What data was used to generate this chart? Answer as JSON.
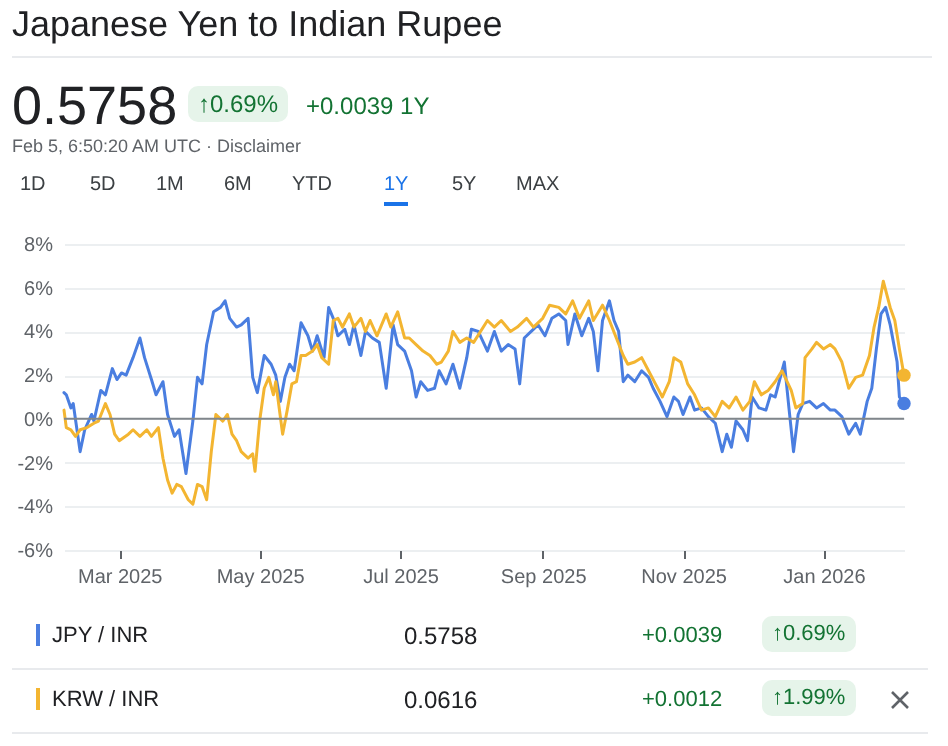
{
  "chart_data": {
    "type": "line",
    "title": "Japanese Yen to Indian Rupee",
    "annotations": [
      "0.5758",
      "↑0.69%",
      "+0.0039 1Y",
      "Feb 5, 6:50:20 AM UTC · Disclaimer",
      "1D",
      "5D",
      "1M",
      "6M",
      "YTD",
      "1Y",
      "5Y",
      "MAX",
      "0.5758",
      "+0.0039",
      "↑0.69%",
      "0.0616",
      "+0.0012",
      "↑1.99%"
    ],
    "xlim": [
      "2025-02-05",
      "2026-02-05"
    ],
    "xticks": [
      {
        "value": "2025-03-01",
        "label": "Mar 2025"
      },
      {
        "value": "2025-05-01",
        "label": "May 2025"
      },
      {
        "value": "2025-07-01",
        "label": "Jul 2025"
      },
      {
        "value": "2025-09-01",
        "label": "Sep 2025"
      },
      {
        "value": "2025-11-01",
        "label": "Nov 2025"
      },
      {
        "value": "2026-01-01",
        "label": "Jan 2026"
      }
    ],
    "ylim": [
      -6,
      8
    ],
    "yticks": [
      {
        "value": -6,
        "label": "-6%"
      },
      {
        "value": -4,
        "label": "-4%"
      },
      {
        "value": -2,
        "label": "-2%"
      },
      {
        "value": 0,
        "label": "0%"
      },
      {
        "value": 2,
        "label": "2%"
      },
      {
        "value": 4,
        "label": "4%"
      },
      {
        "value": 6,
        "label": "6%"
      },
      {
        "value": 8,
        "label": "8%"
      }
    ],
    "grid": "y",
    "legend": "bottom",
    "marker": "none",
    "line_style": "solid",
    "ref_lines": [
      {
        "axis": "y",
        "value": 0,
        "color": "#80868b"
      }
    ],
    "series": [
      {
        "name": "JPY / INR",
        "color": "#4a7ee0",
        "x": [
          "2025-02-05",
          "2025-02-06",
          "2025-02-08",
          "2025-02-09",
          "2025-02-12",
          "2025-02-14",
          "2025-02-17",
          "2025-02-18",
          "2025-02-21",
          "2025-02-23",
          "2025-02-26",
          "2025-02-28",
          "2025-03-02",
          "2025-03-04",
          "2025-03-07",
          "2025-03-10",
          "2025-03-12",
          "2025-03-15",
          "2025-03-17",
          "2025-03-20",
          "2025-03-22",
          "2025-03-25",
          "2025-03-27",
          "2025-03-30",
          "2025-04-02",
          "2025-04-04",
          "2025-04-06",
          "2025-04-08",
          "2025-04-11",
          "2025-04-14",
          "2025-04-16",
          "2025-04-18",
          "2025-04-21",
          "2025-04-23",
          "2025-04-26",
          "2025-04-28",
          "2025-04-30",
          "2025-05-03",
          "2025-05-06",
          "2025-05-08",
          "2025-05-10",
          "2025-05-12",
          "2025-05-14",
          "2025-05-16",
          "2025-05-19",
          "2025-05-22",
          "2025-05-24",
          "2025-05-26",
          "2025-05-29",
          "2025-05-31",
          "2025-06-02",
          "2025-06-04",
          "2025-06-07",
          "2025-06-09",
          "2025-06-11",
          "2025-06-14",
          "2025-06-16",
          "2025-06-19",
          "2025-06-22",
          "2025-06-25",
          "2025-06-28",
          "2025-06-30",
          "2025-07-03",
          "2025-07-06",
          "2025-07-08",
          "2025-07-10",
          "2025-07-13",
          "2025-07-16",
          "2025-07-18",
          "2025-07-21",
          "2025-07-24",
          "2025-07-27",
          "2025-07-30",
          "2025-08-01",
          "2025-08-04",
          "2025-08-08",
          "2025-08-11",
          "2025-08-14",
          "2025-08-17",
          "2025-08-20",
          "2025-08-22",
          "2025-08-24",
          "2025-08-27",
          "2025-08-30",
          "2025-09-02",
          "2025-09-05",
          "2025-09-08",
          "2025-09-11",
          "2025-09-12",
          "2025-09-15",
          "2025-09-18",
          "2025-09-21",
          "2025-09-23",
          "2025-09-25",
          "2025-09-27",
          "2025-09-30",
          "2025-10-02",
          "2025-10-04",
          "2025-10-06",
          "2025-10-08",
          "2025-10-11",
          "2025-10-14",
          "2025-10-17",
          "2025-10-19",
          "2025-10-22",
          "2025-10-25",
          "2025-10-28",
          "2025-10-30",
          "2025-11-01",
          "2025-11-04",
          "2025-11-06",
          "2025-11-09",
          "2025-11-12",
          "2025-11-15",
          "2025-11-18",
          "2025-11-20",
          "2025-11-22",
          "2025-11-24",
          "2025-11-27",
          "2025-11-29",
          "2025-12-01",
          "2025-12-04",
          "2025-12-07",
          "2025-12-09",
          "2025-12-11",
          "2025-12-15",
          "2025-12-17",
          "2025-12-19",
          "2025-12-21",
          "2025-12-23",
          "2025-12-26",
          "2025-12-29",
          "2026-01-01",
          "2026-01-04",
          "2026-01-06",
          "2026-01-09",
          "2026-01-12",
          "2026-01-15",
          "2026-01-17",
          "2026-01-20",
          "2026-01-22",
          "2026-01-24",
          "2026-01-26",
          "2026-01-28",
          "2026-01-30",
          "2026-02-02",
          "2026-02-03",
          "2026-02-05"
        ],
        "values": [
          1.2,
          1.1,
          0.5,
          0.7,
          -1.5,
          -0.5,
          0.2,
          -0.1,
          1.3,
          1.1,
          2.3,
          1.8,
          2.1,
          2.0,
          2.8,
          3.7,
          2.8,
          1.8,
          1.1,
          1.7,
          0.2,
          -0.8,
          -0.5,
          -2.5,
          -0.1,
          1.9,
          1.6,
          3.4,
          4.9,
          5.1,
          5.4,
          4.6,
          4.2,
          4.3,
          4.6,
          1.9,
          1.2,
          2.9,
          2.5,
          2.0,
          0.8,
          1.9,
          2.5,
          2.2,
          4.4,
          3.8,
          3.1,
          3.8,
          2.8,
          5.1,
          4.6,
          3.8,
          4.1,
          3.4,
          4.3,
          2.9,
          4.0,
          3.7,
          3.5,
          1.4,
          4.3,
          3.4,
          3.1,
          2.2,
          1.0,
          1.7,
          1.3,
          1.4,
          2.2,
          1.6,
          2.5,
          1.4,
          2.8,
          4.1,
          4.0,
          3.1,
          4.0,
          3.1,
          3.4,
          3.2,
          1.6,
          3.7,
          4.0,
          4.3,
          3.8,
          4.6,
          4.8,
          4.5,
          3.4,
          4.8,
          3.8,
          4.6,
          4.0,
          2.2,
          4.5,
          5.4,
          4.5,
          4.0,
          1.7,
          2.0,
          1.7,
          2.2,
          1.9,
          1.4,
          0.8,
          0.1,
          1.0,
          0.8,
          0.2,
          1.0,
          0.4,
          0.5,
          0.1,
          -0.2,
          -1.5,
          -0.7,
          -1.3,
          -0.1,
          -0.5,
          -1.0,
          1.0,
          0.5,
          0.4,
          1.1,
          1.0,
          2.6,
          0.5,
          -1.5,
          0.2,
          0.7,
          0.8,
          0.5,
          0.7,
          0.4,
          0.4,
          0.1,
          -0.7,
          -0.2,
          -0.7,
          0.8,
          1.4,
          3.2,
          4.8,
          5.1,
          4.3,
          2.6,
          1.0,
          0.7
        ]
      },
      {
        "name": "KRW / INR",
        "color": "#f3b531",
        "x": [
          "2025-02-05",
          "2025-02-06",
          "2025-02-08",
          "2025-02-10",
          "2025-02-12",
          "2025-02-15",
          "2025-02-18",
          "2025-02-20",
          "2025-02-23",
          "2025-02-25",
          "2025-02-27",
          "2025-03-01",
          "2025-03-05",
          "2025-03-07",
          "2025-03-10",
          "2025-03-13",
          "2025-03-15",
          "2025-03-18",
          "2025-03-20",
          "2025-03-22",
          "2025-03-24",
          "2025-03-26",
          "2025-03-28",
          "2025-03-31",
          "2025-04-02",
          "2025-04-04",
          "2025-04-06",
          "2025-04-08",
          "2025-04-10",
          "2025-04-12",
          "2025-04-15",
          "2025-04-17",
          "2025-04-19",
          "2025-04-21",
          "2025-04-23",
          "2025-04-26",
          "2025-04-28",
          "2025-04-29",
          "2025-05-01",
          "2025-05-03",
          "2025-05-05",
          "2025-05-07",
          "2025-05-08",
          "2025-05-11",
          "2025-05-13",
          "2025-05-15",
          "2025-05-17",
          "2025-05-19",
          "2025-05-21",
          "2025-05-24",
          "2025-05-26",
          "2025-05-28",
          "2025-05-31",
          "2025-06-02",
          "2025-06-04",
          "2025-06-06",
          "2025-06-09",
          "2025-06-11",
          "2025-06-14",
          "2025-06-16",
          "2025-06-18",
          "2025-06-21",
          "2025-06-23",
          "2025-06-25",
          "2025-06-27",
          "2025-06-30",
          "2025-07-03",
          "2025-07-05",
          "2025-07-08",
          "2025-07-11",
          "2025-07-14",
          "2025-07-17",
          "2025-07-19",
          "2025-07-22",
          "2025-07-24",
          "2025-07-27",
          "2025-07-30",
          "2025-08-02",
          "2025-08-08",
          "2025-08-11",
          "2025-08-14",
          "2025-08-18",
          "2025-08-21",
          "2025-08-25",
          "2025-08-28",
          "2025-09-01",
          "2025-09-04",
          "2025-09-08",
          "2025-09-11",
          "2025-09-14",
          "2025-09-17",
          "2025-09-21",
          "2025-09-23",
          "2025-09-27",
          "2025-09-30",
          "2025-10-03",
          "2025-10-06",
          "2025-10-08",
          "2025-10-11",
          "2025-10-14",
          "2025-10-17",
          "2025-10-20",
          "2025-10-23",
          "2025-10-26",
          "2025-10-28",
          "2025-10-31",
          "2025-11-03",
          "2025-11-06",
          "2025-11-09",
          "2025-11-12",
          "2025-11-15",
          "2025-11-18",
          "2025-11-21",
          "2025-11-24",
          "2025-11-27",
          "2025-11-30",
          "2025-12-02",
          "2025-12-05",
          "2025-12-08",
          "2025-12-11",
          "2025-12-14",
          "2025-12-18",
          "2025-12-20",
          "2025-12-23",
          "2025-12-24",
          "2025-12-27",
          "2025-12-29",
          "2026-01-01",
          "2026-01-04",
          "2026-01-06",
          "2026-01-09",
          "2026-01-12",
          "2026-01-15",
          "2026-01-18",
          "2026-01-21",
          "2026-01-23",
          "2026-01-25",
          "2026-01-27",
          "2026-01-30",
          "2026-02-01",
          "2026-02-03",
          "2026-02-05"
        ],
        "values": [
          0.4,
          -0.4,
          -0.5,
          -0.8,
          -0.5,
          -0.4,
          -0.2,
          -0.1,
          0.7,
          0.2,
          -0.7,
          -1.0,
          -0.7,
          -0.5,
          -0.8,
          -0.5,
          -0.8,
          -0.4,
          -1.8,
          -2.8,
          -3.4,
          -3.0,
          -3.1,
          -3.7,
          -3.9,
          -3.0,
          -3.1,
          -3.7,
          -1.5,
          0.2,
          -0.1,
          0.2,
          -0.7,
          -1.0,
          -1.5,
          -1.8,
          -1.6,
          -2.4,
          -0.1,
          1.4,
          1.9,
          1.1,
          1.7,
          -0.7,
          0.4,
          1.6,
          1.7,
          2.9,
          2.9,
          3.1,
          3.4,
          2.8,
          2.5,
          4.5,
          4.6,
          4.2,
          4.8,
          4.2,
          4.6,
          4.0,
          4.5,
          3.8,
          4.3,
          4.8,
          4.2,
          4.9,
          3.7,
          3.7,
          3.4,
          3.1,
          2.9,
          2.5,
          2.6,
          3.1,
          4.0,
          3.5,
          3.7,
          3.5,
          4.5,
          4.2,
          4.5,
          4.0,
          4.2,
          4.6,
          4.2,
          4.6,
          5.2,
          5.1,
          4.8,
          5.4,
          4.6,
          5.4,
          4.5,
          5.2,
          4.5,
          3.7,
          2.9,
          2.5,
          2.6,
          2.8,
          2.2,
          1.6,
          1.0,
          1.7,
          2.8,
          2.6,
          1.6,
          1.1,
          0.4,
          0.5,
          0.1,
          0.8,
          0.5,
          1.0,
          0.4,
          0.8,
          1.7,
          1.1,
          1.3,
          1.7,
          2.2,
          1.3,
          0.5,
          0.7,
          2.8,
          3.2,
          3.5,
          3.2,
          3.4,
          3.2,
          2.6,
          1.4,
          1.9,
          2.0,
          2.9,
          4.2,
          5.1,
          6.3,
          5.1,
          4.5,
          3.2,
          2.0
        ]
      }
    ]
  }
}
